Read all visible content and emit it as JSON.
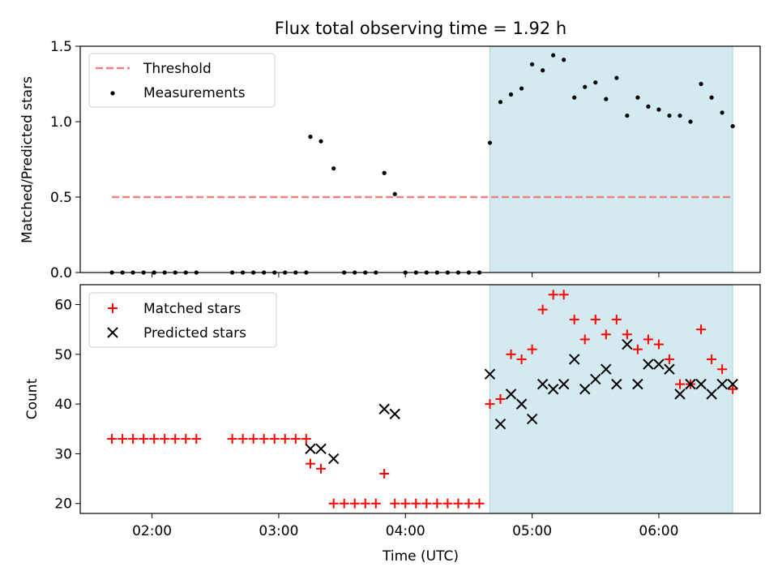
{
  "chart_data": [
    {
      "type": "scatter",
      "title": "Flux total observing time = 1.92 h",
      "ylabel": "Matched/Predicted stars",
      "xlabel": "",
      "ylim": [
        0,
        1.5
      ],
      "yticks": [
        0,
        0.5,
        1,
        1.5
      ],
      "ytick_labels": [
        "0.0",
        "0.5",
        "1.0",
        "1.5"
      ],
      "xlim": [
        "01:26",
        "06:48"
      ],
      "shaded_region": {
        "x_start": "04:40",
        "x_end": "06:35",
        "color": "#d3eaf0"
      },
      "legend_position": "upper-left",
      "grid": false,
      "threshold": {
        "name": "Threshold",
        "value": 0.5,
        "x_start": "01:41",
        "x_end": "06:35",
        "color": "#f08080",
        "style": "dashed"
      },
      "series": [
        {
          "name": "Measurements",
          "color": "#000000",
          "marker": "dot",
          "points": [
            {
              "x": "01:41",
              "y": 0
            },
            {
              "x": "01:46",
              "y": 0
            },
            {
              "x": "01:51",
              "y": 0
            },
            {
              "x": "01:56",
              "y": 0
            },
            {
              "x": "02:01",
              "y": 0
            },
            {
              "x": "02:06",
              "y": 0
            },
            {
              "x": "02:11",
              "y": 0
            },
            {
              "x": "02:16",
              "y": 0
            },
            {
              "x": "02:21",
              "y": 0
            },
            {
              "x": "02:38",
              "y": 0
            },
            {
              "x": "02:43",
              "y": 0
            },
            {
              "x": "02:48",
              "y": 0
            },
            {
              "x": "02:53",
              "y": 0
            },
            {
              "x": "02:58",
              "y": 0
            },
            {
              "x": "03:03",
              "y": 0
            },
            {
              "x": "03:08",
              "y": 0
            },
            {
              "x": "03:13",
              "y": 0
            },
            {
              "x": "03:15",
              "y": 0.9
            },
            {
              "x": "03:20",
              "y": 0.87
            },
            {
              "x": "03:26",
              "y": 0.69
            },
            {
              "x": "03:31",
              "y": 0
            },
            {
              "x": "03:36",
              "y": 0
            },
            {
              "x": "03:41",
              "y": 0
            },
            {
              "x": "03:46",
              "y": 0
            },
            {
              "x": "03:50",
              "y": 0.66
            },
            {
              "x": "03:55",
              "y": 0.52
            },
            {
              "x": "04:00",
              "y": 0
            },
            {
              "x": "04:05",
              "y": 0
            },
            {
              "x": "04:10",
              "y": 0
            },
            {
              "x": "04:15",
              "y": 0
            },
            {
              "x": "04:20",
              "y": 0
            },
            {
              "x": "04:25",
              "y": 0
            },
            {
              "x": "04:30",
              "y": 0
            },
            {
              "x": "04:35",
              "y": 0
            },
            {
              "x": "04:40",
              "y": 0.86
            },
            {
              "x": "04:45",
              "y": 1.13
            },
            {
              "x": "04:50",
              "y": 1.18
            },
            {
              "x": "04:55",
              "y": 1.22
            },
            {
              "x": "05:00",
              "y": 1.38
            },
            {
              "x": "05:05",
              "y": 1.34
            },
            {
              "x": "05:10",
              "y": 1.44
            },
            {
              "x": "05:15",
              "y": 1.41
            },
            {
              "x": "05:20",
              "y": 1.16
            },
            {
              "x": "05:25",
              "y": 1.23
            },
            {
              "x": "05:30",
              "y": 1.26
            },
            {
              "x": "05:35",
              "y": 1.15
            },
            {
              "x": "05:40",
              "y": 1.29
            },
            {
              "x": "05:45",
              "y": 1.04
            },
            {
              "x": "05:50",
              "y": 1.16
            },
            {
              "x": "05:55",
              "y": 1.1
            },
            {
              "x": "06:00",
              "y": 1.08
            },
            {
              "x": "06:05",
              "y": 1.04
            },
            {
              "x": "06:10",
              "y": 1.04
            },
            {
              "x": "06:15",
              "y": 1.0
            },
            {
              "x": "06:20",
              "y": 1.25
            },
            {
              "x": "06:25",
              "y": 1.16
            },
            {
              "x": "06:30",
              "y": 1.06
            },
            {
              "x": "06:35",
              "y": 0.97
            }
          ]
        }
      ]
    },
    {
      "type": "scatter",
      "title": "",
      "ylabel": "Count",
      "xlabel": "Time (UTC)",
      "ylim": [
        18,
        64
      ],
      "yticks": [
        20,
        30,
        40,
        50,
        60
      ],
      "ytick_labels": [
        "20",
        "30",
        "40",
        "50",
        "60"
      ],
      "xlim": [
        "01:26",
        "06:48"
      ],
      "xticks": [
        "02:00",
        "03:00",
        "04:00",
        "05:00",
        "06:00"
      ],
      "xtick_labels": [
        "02:00",
        "03:00",
        "04:00",
        "05:00",
        "06:00"
      ],
      "shaded_region": {
        "x_start": "04:40",
        "x_end": "06:35",
        "color": "#d3eaf0"
      },
      "legend_position": "upper-left",
      "grid": false,
      "series": [
        {
          "name": "Matched stars",
          "color": "#ff0000",
          "marker": "plus",
          "points": [
            {
              "x": "01:41",
              "y": 33
            },
            {
              "x": "01:46",
              "y": 33
            },
            {
              "x": "01:51",
              "y": 33
            },
            {
              "x": "01:56",
              "y": 33
            },
            {
              "x": "02:01",
              "y": 33
            },
            {
              "x": "02:06",
              "y": 33
            },
            {
              "x": "02:11",
              "y": 33
            },
            {
              "x": "02:16",
              "y": 33
            },
            {
              "x": "02:21",
              "y": 33
            },
            {
              "x": "02:38",
              "y": 33
            },
            {
              "x": "02:43",
              "y": 33
            },
            {
              "x": "02:48",
              "y": 33
            },
            {
              "x": "02:53",
              "y": 33
            },
            {
              "x": "02:58",
              "y": 33
            },
            {
              "x": "03:03",
              "y": 33
            },
            {
              "x": "03:08",
              "y": 33
            },
            {
              "x": "03:13",
              "y": 33
            },
            {
              "x": "03:15",
              "y": 28
            },
            {
              "x": "03:20",
              "y": 27
            },
            {
              "x": "03:26",
              "y": 20
            },
            {
              "x": "03:31",
              "y": 20
            },
            {
              "x": "03:36",
              "y": 20
            },
            {
              "x": "03:41",
              "y": 20
            },
            {
              "x": "03:46",
              "y": 20
            },
            {
              "x": "03:50",
              "y": 26
            },
            {
              "x": "03:55",
              "y": 20
            },
            {
              "x": "04:00",
              "y": 20
            },
            {
              "x": "04:05",
              "y": 20
            },
            {
              "x": "04:10",
              "y": 20
            },
            {
              "x": "04:15",
              "y": 20
            },
            {
              "x": "04:20",
              "y": 20
            },
            {
              "x": "04:25",
              "y": 20
            },
            {
              "x": "04:30",
              "y": 20
            },
            {
              "x": "04:35",
              "y": 20
            },
            {
              "x": "04:40",
              "y": 40
            },
            {
              "x": "04:45",
              "y": 41
            },
            {
              "x": "04:50",
              "y": 50
            },
            {
              "x": "04:55",
              "y": 49
            },
            {
              "x": "05:00",
              "y": 51
            },
            {
              "x": "05:05",
              "y": 59
            },
            {
              "x": "05:10",
              "y": 62
            },
            {
              "x": "05:15",
              "y": 62
            },
            {
              "x": "05:20",
              "y": 57
            },
            {
              "x": "05:25",
              "y": 53
            },
            {
              "x": "05:30",
              "y": 57
            },
            {
              "x": "05:35",
              "y": 54
            },
            {
              "x": "05:40",
              "y": 57
            },
            {
              "x": "05:45",
              "y": 54
            },
            {
              "x": "05:50",
              "y": 51
            },
            {
              "x": "05:55",
              "y": 53
            },
            {
              "x": "06:00",
              "y": 52
            },
            {
              "x": "06:05",
              "y": 49
            },
            {
              "x": "06:10",
              "y": 44
            },
            {
              "x": "06:15",
              "y": 44
            },
            {
              "x": "06:20",
              "y": 55
            },
            {
              "x": "06:25",
              "y": 49
            },
            {
              "x": "06:30",
              "y": 47
            },
            {
              "x": "06:35",
              "y": 43
            }
          ]
        },
        {
          "name": "Predicted stars",
          "color": "#000000",
          "marker": "x",
          "points": [
            {
              "x": "03:15",
              "y": 31
            },
            {
              "x": "03:20",
              "y": 31
            },
            {
              "x": "03:26",
              "y": 29
            },
            {
              "x": "03:50",
              "y": 39
            },
            {
              "x": "03:55",
              "y": 38
            },
            {
              "x": "04:40",
              "y": 46
            },
            {
              "x": "04:45",
              "y": 36
            },
            {
              "x": "04:50",
              "y": 42
            },
            {
              "x": "04:55",
              "y": 40
            },
            {
              "x": "05:00",
              "y": 37
            },
            {
              "x": "05:05",
              "y": 44
            },
            {
              "x": "05:10",
              "y": 43
            },
            {
              "x": "05:15",
              "y": 44
            },
            {
              "x": "05:20",
              "y": 49
            },
            {
              "x": "05:25",
              "y": 43
            },
            {
              "x": "05:30",
              "y": 45
            },
            {
              "x": "05:35",
              "y": 47
            },
            {
              "x": "05:40",
              "y": 44
            },
            {
              "x": "05:45",
              "y": 52
            },
            {
              "x": "05:50",
              "y": 44
            },
            {
              "x": "05:55",
              "y": 48
            },
            {
              "x": "06:00",
              "y": 48
            },
            {
              "x": "06:05",
              "y": 47
            },
            {
              "x": "06:10",
              "y": 42
            },
            {
              "x": "06:15",
              "y": 44
            },
            {
              "x": "06:20",
              "y": 44
            },
            {
              "x": "06:25",
              "y": 42
            },
            {
              "x": "06:30",
              "y": 44
            },
            {
              "x": "06:35",
              "y": 44
            }
          ]
        }
      ]
    }
  ]
}
